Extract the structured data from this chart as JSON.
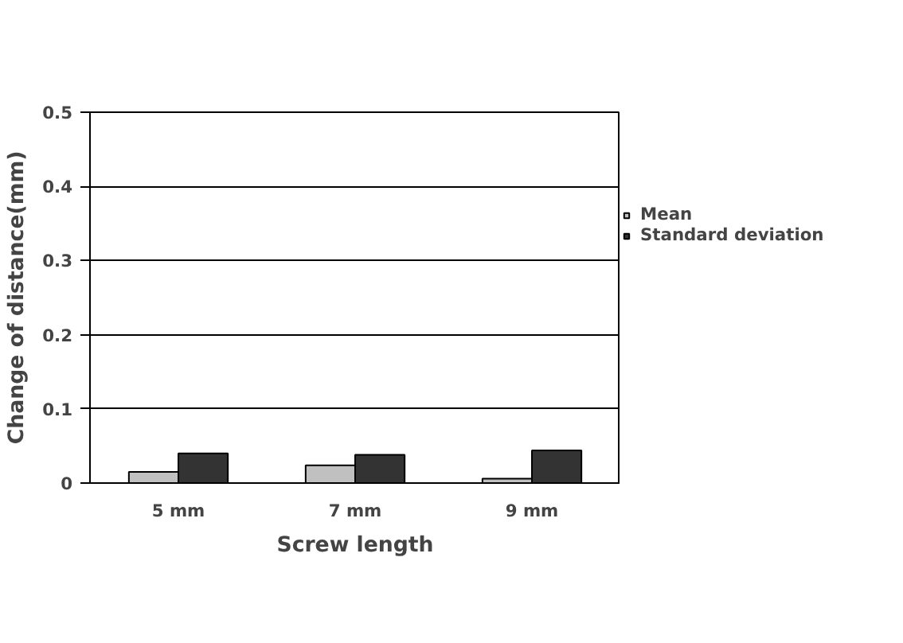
{
  "chart_data": {
    "type": "bar",
    "xlabel": "Screw length",
    "ylabel": "Change of distance(mm)",
    "categories": [
      "5 mm",
      "7 mm",
      "9 mm"
    ],
    "series": [
      {
        "name": "Mean",
        "color": "#c0c0c0",
        "values": [
          0.015,
          0.024,
          0.006
        ]
      },
      {
        "name": "Standard deviation",
        "color": "#333333",
        "values": [
          0.04,
          0.038,
          0.044
        ]
      }
    ],
    "ylim": [
      0,
      0.5
    ],
    "yticks": [
      {
        "value": 0,
        "label": "0"
      },
      0.1,
      0.2,
      0.3,
      0.4,
      0.5
    ],
    "grid": "y",
    "legend": "right"
  }
}
